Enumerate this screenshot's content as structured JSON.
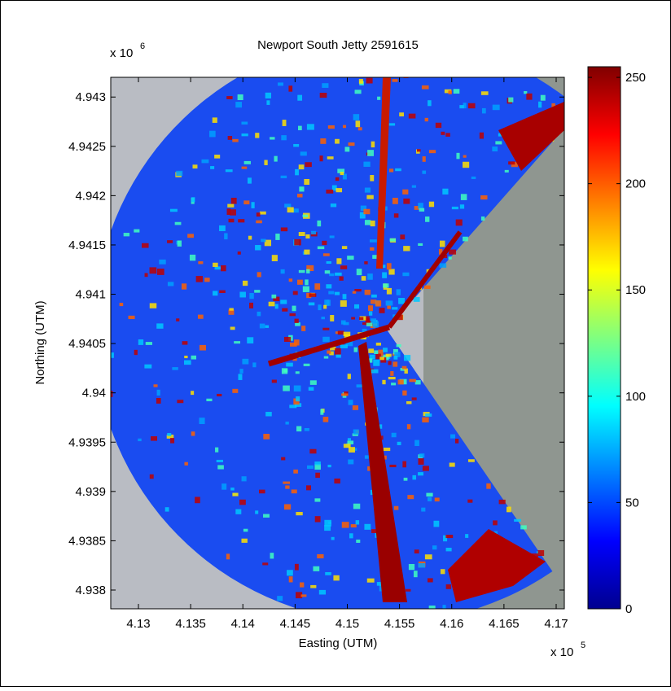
{
  "chart_data": {
    "type": "image",
    "title": "Newport South Jetty 2591615",
    "x_label": "Easting (UTM)",
    "y_label": "Northing (UTM)",
    "x_exponent": {
      "base": "x 10",
      "power": "5"
    },
    "y_exponent": {
      "base": "x 10",
      "power": "6"
    },
    "xlim": [
      4.12735,
      4.17078
    ],
    "xticks": [
      4.13,
      4.135,
      4.14,
      4.145,
      4.15,
      4.155,
      4.16,
      4.165,
      4.17
    ],
    "ylim": [
      4.93781,
      4.9432
    ],
    "yticks": [
      4.938,
      4.9385,
      4.939,
      4.9395,
      4.94,
      4.9405,
      4.941,
      4.9415,
      4.942,
      4.9425,
      4.943
    ],
    "colormap": "jet",
    "clim": [
      0,
      255
    ],
    "cticks": [
      0,
      50,
      100,
      150,
      200,
      250
    ]
  }
}
